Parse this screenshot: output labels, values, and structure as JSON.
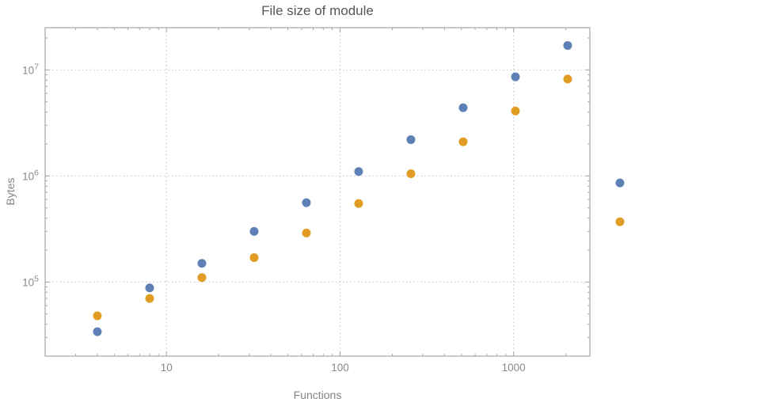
{
  "chart_data": {
    "type": "scatter",
    "title": "File size of module",
    "xlabel": "Functions",
    "ylabel": "Bytes",
    "xscale": "log",
    "yscale": "log",
    "xlim": [
      2,
      2750
    ],
    "ylim": [
      20000,
      25000000
    ],
    "grid": true,
    "legend": false,
    "x_ticks": [
      {
        "value": 10,
        "label": "10"
      },
      {
        "value": 100,
        "label": "100"
      },
      {
        "value": 1000,
        "label": "1000"
      }
    ],
    "y_ticks": [
      {
        "value": 100000,
        "label": "10^5"
      },
      {
        "value": 1000000,
        "label": "10^6"
      },
      {
        "value": 10000000,
        "label": "10^7"
      }
    ],
    "series": [
      {
        "name": "blue-series",
        "color": "#5e81b5",
        "x": [
          4,
          8,
          16,
          32,
          64,
          128,
          256,
          512,
          1024,
          2048,
          4096
        ],
        "y": [
          34000,
          88000,
          150000,
          300000,
          560000,
          1100000,
          2200000,
          4400000,
          8600000,
          17000000,
          860000
        ]
      },
      {
        "name": "orange-series",
        "color": "#e19c24",
        "x": [
          4,
          8,
          16,
          32,
          64,
          128,
          256,
          512,
          1024,
          2048,
          4096
        ],
        "y": [
          48000,
          70000,
          110000,
          170000,
          290000,
          550000,
          1050000,
          2100000,
          4100000,
          8200000,
          370000
        ]
      }
    ],
    "style": {
      "frame_color": "#a5a5a5",
      "grid_color": "#c7c7c7",
      "tick_label_color": "#8a8a8a",
      "title_color": "#555555",
      "axis_label_color": "#848484"
    }
  }
}
